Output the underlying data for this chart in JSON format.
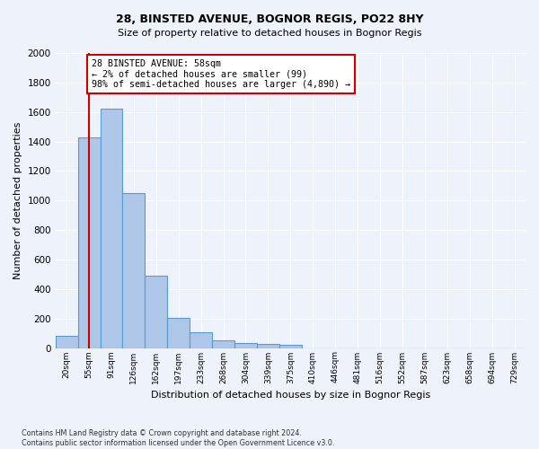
{
  "title_line1": "28, BINSTED AVENUE, BOGNOR REGIS, PO22 8HY",
  "title_line2": "Size of property relative to detached houses in Bognor Regis",
  "xlabel": "Distribution of detached houses by size in Bognor Regis",
  "ylabel": "Number of detached properties",
  "footnote": "Contains HM Land Registry data © Crown copyright and database right 2024.\nContains public sector information licensed under the Open Government Licence v3.0.",
  "bin_labels": [
    "20sqm",
    "55sqm",
    "91sqm",
    "126sqm",
    "162sqm",
    "197sqm",
    "233sqm",
    "268sqm",
    "304sqm",
    "339sqm",
    "375sqm",
    "410sqm",
    "446sqm",
    "481sqm",
    "516sqm",
    "552sqm",
    "587sqm",
    "623sqm",
    "658sqm",
    "694sqm",
    "729sqm"
  ],
  "bar_values": [
    80,
    1430,
    1620,
    1050,
    490,
    205,
    105,
    50,
    35,
    25,
    20,
    0,
    0,
    0,
    0,
    0,
    0,
    0,
    0,
    0,
    0
  ],
  "bar_color": "#aec6e8",
  "bar_edge_color": "#5b9bd5",
  "marker_bin_index": 1,
  "marker_line_color": "#cc0000",
  "annotation_text": "28 BINSTED AVENUE: 58sqm\n← 2% of detached houses are smaller (99)\n98% of semi-detached houses are larger (4,890) →",
  "annotation_box_color": "#ffffff",
  "annotation_box_edge_color": "#cc0000",
  "ylim": [
    0,
    2000
  ],
  "yticks": [
    0,
    200,
    400,
    600,
    800,
    1000,
    1200,
    1400,
    1600,
    1800,
    2000
  ],
  "background_color": "#eef2fb",
  "plot_bg_color": "#eef2fb",
  "grid_color": "#ffffff"
}
